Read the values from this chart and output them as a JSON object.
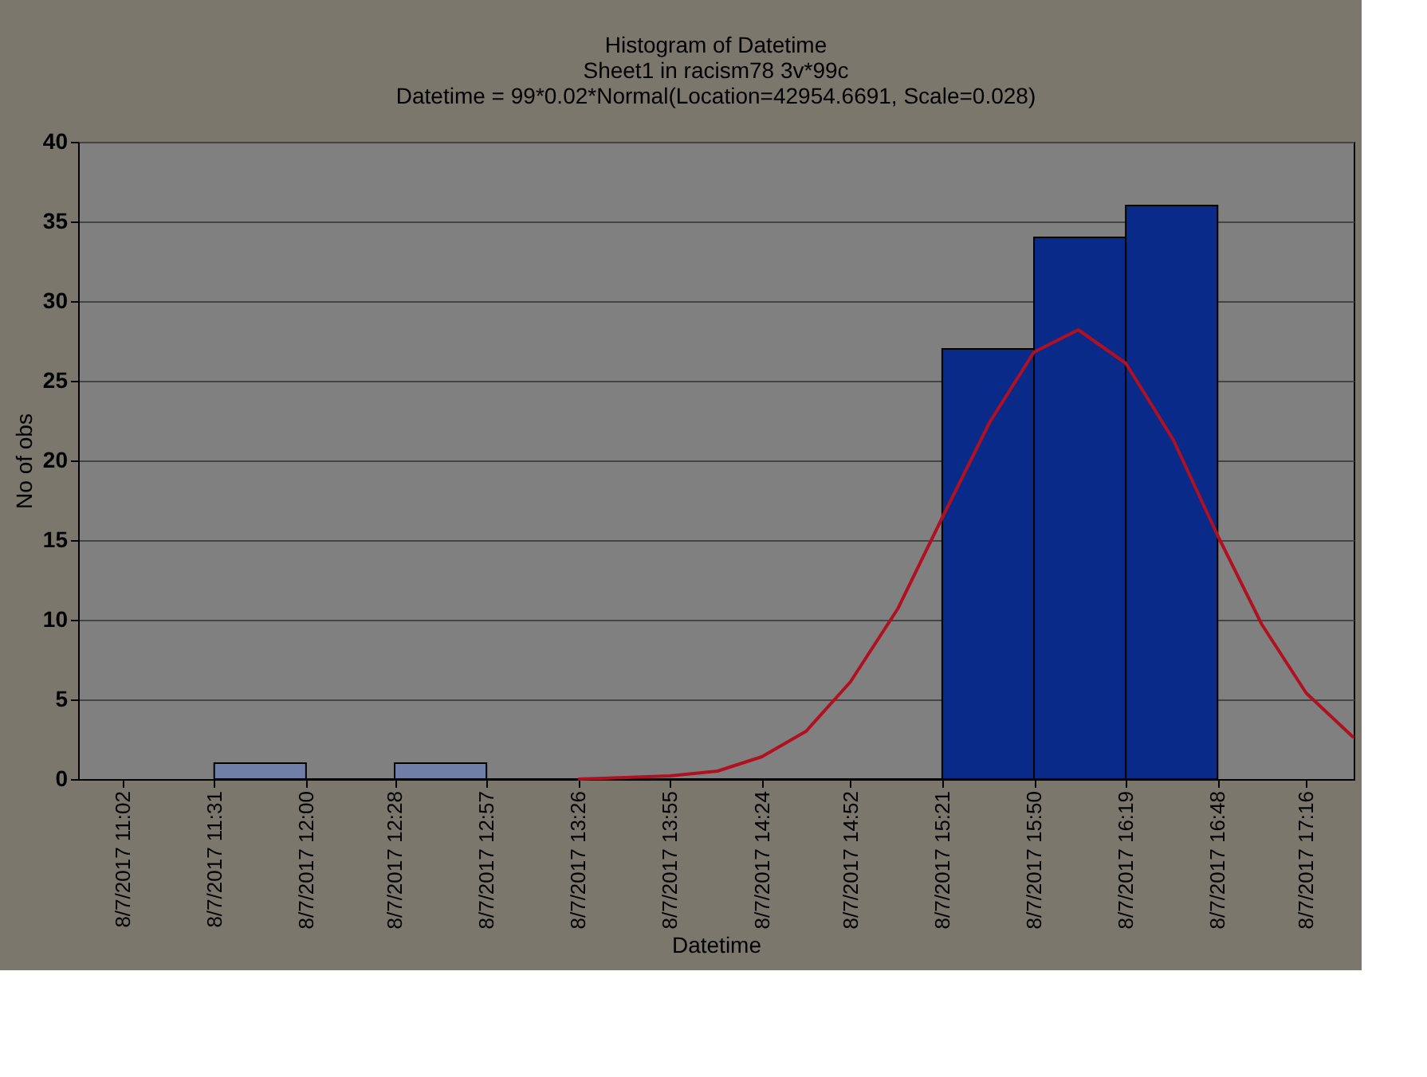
{
  "chart_data": {
    "type": "histogram",
    "title": "Histogram of Datetime",
    "subtitle": "Sheet1 in racism78 3v*99c",
    "annotations": [
      "Datetime = 99*0.02*Normal(Location=42954.6691, Scale=0.028)"
    ],
    "xlabel": "Datetime",
    "ylabel": "No of obs",
    "bins": [
      "2017-08-07T11:31",
      "2017-08-07T12:00",
      "2017-08-07T12:28",
      "2017-08-07T12:57",
      "2017-08-07T15:21",
      "2017-08-07T15:50",
      "2017-08-07T16:19",
      "2017-08-07T16:48"
    ],
    "values": [
      1,
      0,
      1,
      0,
      27,
      34,
      36
    ],
    "colors": [
      "#6f7fa8",
      "#6f7fa8",
      "#6f7fa8",
      "#6f7fa8",
      "#0a2a8a",
      "#0a2a8a",
      "#0a2a8a"
    ],
    "series": [
      {
        "type": "line",
        "color": "#b01020",
        "x": [
          "2017-08-07T13:26",
          "2017-08-07T13:41",
          "2017-08-07T13:55",
          "2017-08-07T14:10",
          "2017-08-07T14:24",
          "2017-08-07T14:38",
          "2017-08-07T14:52",
          "2017-08-07T15:07",
          "2017-08-07T15:21",
          "2017-08-07T15:36",
          "2017-08-07T15:50",
          "2017-08-07T16:04",
          "2017-08-07T16:19",
          "2017-08-07T16:34",
          "2017-08-07T16:48",
          "2017-08-07T17:02",
          "2017-08-07T17:16",
          "2017-08-07T17:31"
        ],
        "values": [
          0.0,
          0.1,
          0.2,
          0.5,
          1.4,
          3.0,
          6.1,
          10.7,
          16.4,
          22.4,
          26.8,
          28.2,
          26.1,
          21.3,
          15.3,
          9.7,
          5.4,
          2.6
        ]
      }
    ],
    "xlim": [
      "2017-08-07T10:48",
      "2017-08-07T17:31"
    ],
    "xticks": [
      {
        "value": "2017-08-07T11:02",
        "label": "8/7/2017 11:02"
      },
      {
        "value": "2017-08-07T11:31",
        "label": "8/7/2017 11:31"
      },
      {
        "value": "2017-08-07T12:00",
        "label": "8/7/2017 12:00"
      },
      {
        "value": "2017-08-07T12:28",
        "label": "8/7/2017 12:28"
      },
      {
        "value": "2017-08-07T12:57",
        "label": "8/7/2017 12:57"
      },
      {
        "value": "2017-08-07T13:26",
        "label": "8/7/2017 13:26"
      },
      {
        "value": "2017-08-07T13:55",
        "label": "8/7/2017 13:55"
      },
      {
        "value": "2017-08-07T14:24",
        "label": "8/7/2017 14:24"
      },
      {
        "value": "2017-08-07T14:52",
        "label": "8/7/2017 14:52"
      },
      {
        "value": "2017-08-07T15:21",
        "label": "8/7/2017 15:21"
      },
      {
        "value": "2017-08-07T15:50",
        "label": "8/7/2017 15:50"
      },
      {
        "value": "2017-08-07T16:19",
        "label": "8/7/2017 16:19"
      },
      {
        "value": "2017-08-07T16:48",
        "label": "8/7/2017 16:48"
      },
      {
        "value": "2017-08-07T17:16",
        "label": "8/7/2017 17:16"
      }
    ],
    "ylim": [
      0,
      40
    ],
    "yticks": [
      0,
      5,
      10,
      15,
      20,
      25,
      30,
      35,
      40
    ],
    "grid": "y",
    "legend": false,
    "marker": "none",
    "line_style": "solid"
  }
}
